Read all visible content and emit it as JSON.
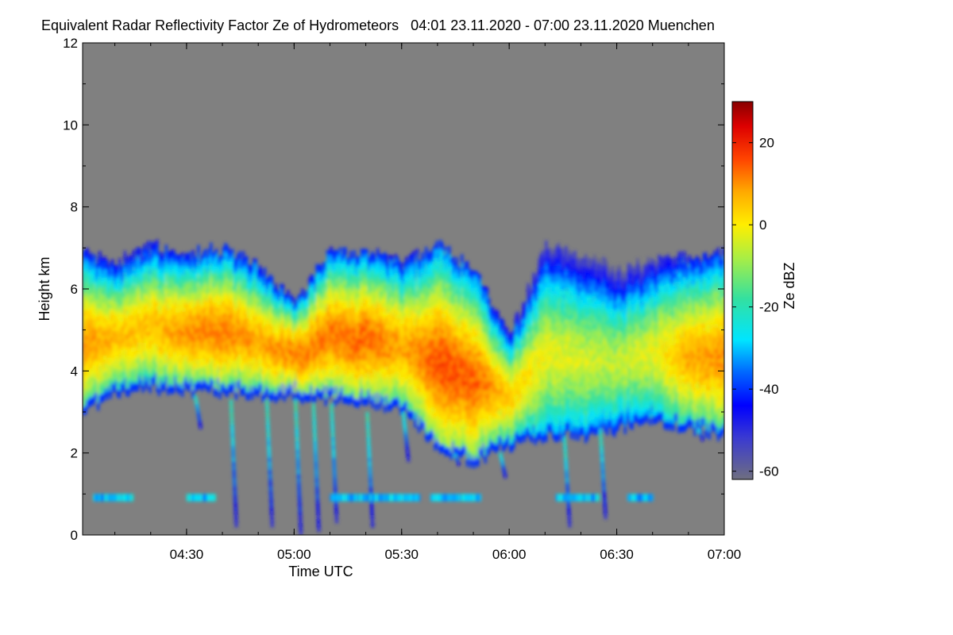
{
  "chart_data": {
    "type": "heatmap",
    "title": "Equivalent Radar Reflectivity Factor Ze of Hydrometeors   04:01 23.11.2020 - 07:00 23.11.2020 Muenchen",
    "xlabel": "Time UTC",
    "ylabel": "Height km",
    "colorbar_label": "Ze dBZ",
    "xlim_minutes_utc": [
      241,
      420
    ],
    "ylim_km": [
      0,
      12
    ],
    "x_ticks": [
      {
        "minute": 270,
        "label": "04:30"
      },
      {
        "minute": 300,
        "label": "05:00"
      },
      {
        "minute": 330,
        "label": "05:30"
      },
      {
        "minute": 360,
        "label": "06:00"
      },
      {
        "minute": 390,
        "label": "06:30"
      },
      {
        "minute": 420,
        "label": "07:00"
      }
    ],
    "y_ticks": [
      {
        "value": 0,
        "label": "0"
      },
      {
        "value": 2,
        "label": "2"
      },
      {
        "value": 4,
        "label": "4"
      },
      {
        "value": 6,
        "label": "6"
      },
      {
        "value": 8,
        "label": "8"
      },
      {
        "value": 10,
        "label": "10"
      },
      {
        "value": 12,
        "label": "12"
      }
    ],
    "colorbar_range_dbz": [
      -62,
      30
    ],
    "colorbar_ticks": [
      {
        "value": 20,
        "label": "20"
      },
      {
        "value": 0,
        "label": "0"
      },
      {
        "value": -20,
        "label": "-20"
      },
      {
        "value": -40,
        "label": "-40"
      },
      {
        "value": -60,
        "label": "-60"
      }
    ],
    "background_color": "#808080",
    "colormap_stops": [
      {
        "dbz": -62,
        "color": "#6e6e80"
      },
      {
        "dbz": -52,
        "color": "#3b3bd0"
      },
      {
        "dbz": -44,
        "color": "#0000ff"
      },
      {
        "dbz": -36,
        "color": "#0066ff"
      },
      {
        "dbz": -28,
        "color": "#00e5ff"
      },
      {
        "dbz": -18,
        "color": "#33e0a0"
      },
      {
        "dbz": -8,
        "color": "#aaee44"
      },
      {
        "dbz": 0,
        "color": "#ffee00"
      },
      {
        "dbz": 8,
        "color": "#ffaa00"
      },
      {
        "dbz": 16,
        "color": "#ff4400"
      },
      {
        "dbz": 24,
        "color": "#dd0000"
      },
      {
        "dbz": 30,
        "color": "#880000"
      }
    ],
    "cloud_layer": [
      {
        "minute": 241,
        "base_km": 3.0,
        "top_km": 6.8,
        "core_dbz": 10
      },
      {
        "minute": 250,
        "base_km": 3.5,
        "top_km": 6.6,
        "core_dbz": 6
      },
      {
        "minute": 260,
        "base_km": 3.6,
        "top_km": 7.0,
        "core_dbz": 6
      },
      {
        "minute": 270,
        "base_km": 3.5,
        "top_km": 6.8,
        "core_dbz": 10
      },
      {
        "minute": 280,
        "base_km": 3.5,
        "top_km": 6.9,
        "core_dbz": 12
      },
      {
        "minute": 290,
        "base_km": 3.4,
        "top_km": 6.5,
        "core_dbz": 8
      },
      {
        "minute": 300,
        "base_km": 3.4,
        "top_km": 5.6,
        "core_dbz": 12
      },
      {
        "minute": 310,
        "base_km": 3.3,
        "top_km": 6.9,
        "core_dbz": 12
      },
      {
        "minute": 320,
        "base_km": 3.2,
        "top_km": 6.8,
        "core_dbz": 14
      },
      {
        "minute": 330,
        "base_km": 3.1,
        "top_km": 6.6,
        "core_dbz": 8
      },
      {
        "minute": 340,
        "base_km": 2.0,
        "top_km": 7.0,
        "core_dbz": 16
      },
      {
        "minute": 350,
        "base_km": 1.8,
        "top_km": 6.4,
        "core_dbz": 14
      },
      {
        "minute": 360,
        "base_km": 2.2,
        "top_km": 4.8,
        "core_dbz": 4
      },
      {
        "minute": 370,
        "base_km": 2.4,
        "top_km": 7.0,
        "core_dbz": -2
      },
      {
        "minute": 380,
        "base_km": 2.4,
        "top_km": 6.8,
        "core_dbz": -4
      },
      {
        "minute": 390,
        "base_km": 2.6,
        "top_km": 6.4,
        "core_dbz": -6
      },
      {
        "minute": 400,
        "base_km": 2.8,
        "top_km": 6.6,
        "core_dbz": -2
      },
      {
        "minute": 410,
        "base_km": 2.6,
        "top_km": 6.7,
        "core_dbz": 8
      },
      {
        "minute": 420,
        "base_km": 2.4,
        "top_km": 6.8,
        "core_dbz": 10
      }
    ]
  }
}
